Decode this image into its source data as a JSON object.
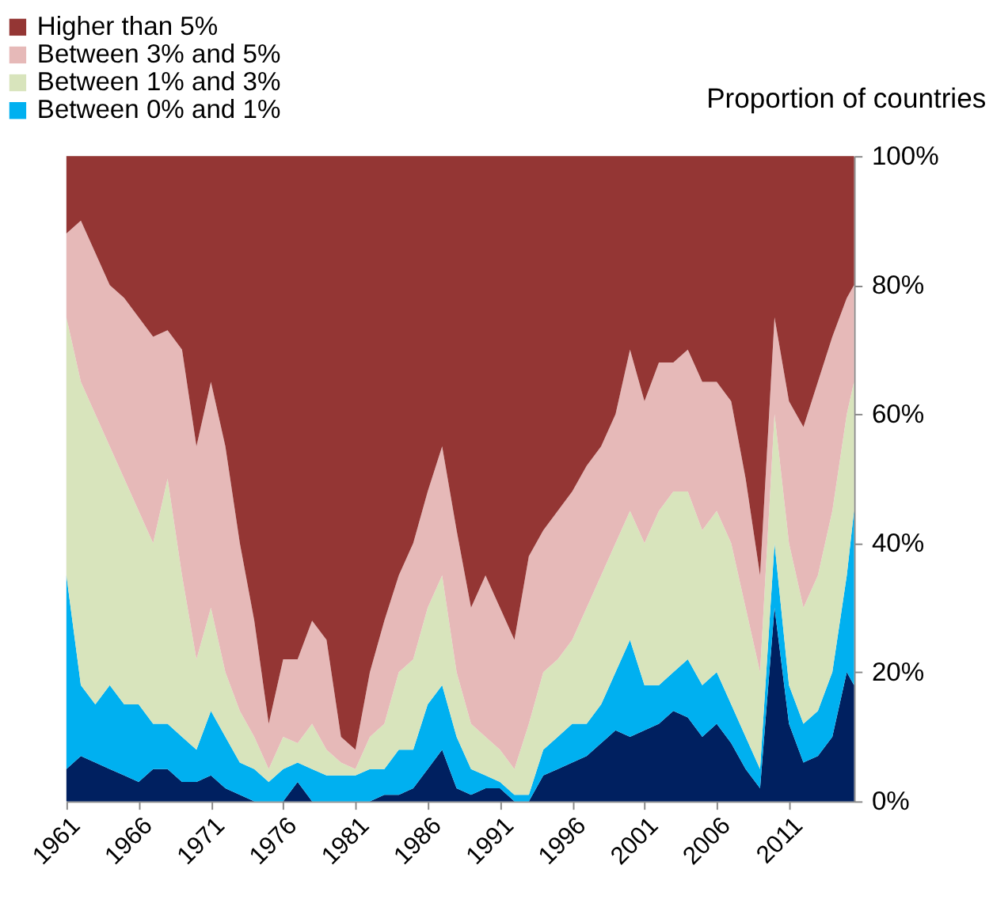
{
  "chart_data": {
    "type": "area",
    "stacked": true,
    "ylabel": "Proportion of countries",
    "legend": "top left",
    "grid": false,
    "x": [
      1961,
      1962,
      1963,
      1964,
      1965,
      1966,
      1967,
      1968,
      1969,
      1970,
      1971,
      1972,
      1973,
      1974,
      1975,
      1976,
      1977,
      1978,
      1979,
      1980,
      1981,
      1982,
      1983,
      1984,
      1985,
      1986,
      1987,
      1988,
      1989,
      1990,
      1991,
      1992,
      1993,
      1994,
      1995,
      1996,
      1997,
      1998,
      1999,
      2000,
      2001,
      2002,
      2003,
      2004,
      2005,
      2006,
      2007,
      2008,
      2009,
      2010,
      2011,
      2012,
      2013,
      2014,
      2015,
      2015.5
    ],
    "xlim": [
      1961,
      2015.5
    ],
    "xticks": [
      1961,
      1966,
      1971,
      1976,
      1981,
      1986,
      1991,
      1996,
      2001,
      2006,
      2011
    ],
    "ylim": [
      0,
      100
    ],
    "yticks": [
      {
        "value": 0,
        "label": "0%"
      },
      {
        "value": 20,
        "label": "20%"
      },
      {
        "value": 40,
        "label": "40%"
      },
      {
        "value": 60,
        "label": "60%"
      },
      {
        "value": 80,
        "label": "80%"
      },
      {
        "value": 100,
        "label": "100%"
      }
    ],
    "series": [
      {
        "color": "#002060",
        "values": [
          5,
          7,
          6,
          5,
          4,
          3,
          5,
          5,
          3,
          3,
          4,
          2,
          1,
          0,
          0,
          0,
          3,
          0,
          0,
          0,
          0,
          0,
          1,
          1,
          2,
          5,
          8,
          2,
          1,
          2,
          2,
          0,
          0,
          4,
          5,
          6,
          7,
          9,
          11,
          10,
          11,
          12,
          14,
          13,
          10,
          12,
          9,
          5,
          2,
          30,
          12,
          6,
          7,
          10,
          20,
          18
        ]
      },
      {
        "name": "Between 0% and 1%",
        "color": "#00b0f0",
        "values": [
          30,
          11,
          9,
          13,
          11,
          12,
          7,
          7,
          7,
          5,
          10,
          8,
          5,
          5,
          3,
          5,
          3,
          5,
          4,
          4,
          4,
          5,
          4,
          7,
          6,
          10,
          10,
          8,
          4,
          2,
          1,
          1,
          1,
          4,
          5,
          6,
          5,
          6,
          9,
          15,
          7,
          6,
          6,
          9,
          8,
          8,
          6,
          5,
          3,
          10,
          6,
          6,
          7,
          10,
          15,
          27
        ]
      },
      {
        "name": "Between 1% and 3%",
        "color": "#d8e4bc",
        "values": [
          40,
          47,
          45,
          37,
          35,
          30,
          28,
          38,
          25,
          14,
          16,
          10,
          8,
          5,
          2,
          5,
          3,
          7,
          4,
          2,
          1,
          5,
          7,
          12,
          14,
          15,
          17,
          10,
          7,
          6,
          5,
          4,
          11,
          12,
          12,
          13,
          18,
          20,
          20,
          20,
          22,
          27,
          28,
          26,
          24,
          25,
          25,
          20,
          15,
          20,
          22,
          18,
          21,
          25,
          25,
          20
        ]
      },
      {
        "name": "Between 3% and 5%",
        "color": "#e6b9b8",
        "values": [
          13,
          25,
          25,
          25,
          28,
          30,
          32,
          23,
          35,
          33,
          35,
          35,
          26,
          18,
          7,
          12,
          13,
          16,
          17,
          4,
          3,
          10,
          16,
          15,
          18,
          18,
          20,
          22,
          18,
          25,
          22,
          20,
          26,
          22,
          23,
          23,
          22,
          20,
          20,
          25,
          22,
          23,
          20,
          22,
          23,
          20,
          22,
          20,
          15,
          15,
          22,
          28,
          30,
          27,
          18,
          15
        ]
      },
      {
        "name": "Higher than 5%",
        "color": "#943634",
        "values": [
          12,
          10,
          15,
          20,
          22,
          25,
          28,
          27,
          30,
          45,
          35,
          45,
          60,
          72,
          88,
          78,
          78,
          72,
          75,
          90,
          92,
          80,
          72,
          65,
          60,
          52,
          45,
          58,
          70,
          65,
          70,
          75,
          62,
          58,
          55,
          52,
          48,
          45,
          40,
          30,
          38,
          32,
          32,
          30,
          35,
          35,
          38,
          50,
          65,
          25,
          38,
          42,
          35,
          28,
          22,
          20
        ]
      }
    ]
  }
}
